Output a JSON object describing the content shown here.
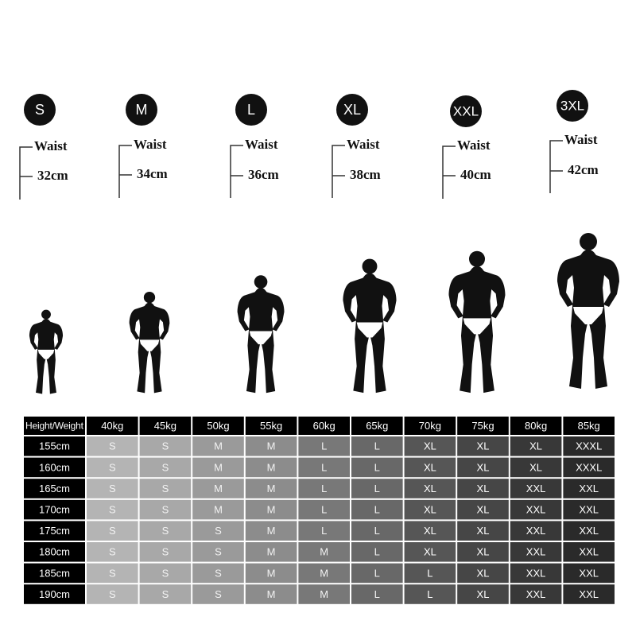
{
  "sizes": [
    {
      "label": "S",
      "measure": "Waist",
      "value": "32cm"
    },
    {
      "label": "M",
      "measure": "Waist",
      "value": "34cm"
    },
    {
      "label": "L",
      "measure": "Waist",
      "value": "36cm"
    },
    {
      "label": "XL",
      "measure": "Waist",
      "value": "38cm"
    },
    {
      "label": "XXL",
      "measure": "Waist",
      "value": "40cm"
    },
    {
      "label": "3XL",
      "measure": "Waist",
      "value": "42cm"
    }
  ],
  "table": {
    "header": [
      "Height/Weight",
      "40kg",
      "45kg",
      "50kg",
      "55kg",
      "60kg",
      "65kg",
      "70kg",
      "75kg",
      "80kg",
      "85kg"
    ],
    "rows": [
      [
        "155cm",
        "S",
        "S",
        "M",
        "M",
        "L",
        "L",
        "XL",
        "XL",
        "XL",
        "XXXL"
      ],
      [
        "160cm",
        "S",
        "S",
        "M",
        "M",
        "L",
        "L",
        "XL",
        "XL",
        "XL",
        "XXXL"
      ],
      [
        "165cm",
        "S",
        "S",
        "M",
        "M",
        "L",
        "L",
        "XL",
        "XL",
        "XXL",
        "XXL"
      ],
      [
        "170cm",
        "S",
        "S",
        "M",
        "M",
        "L",
        "L",
        "XL",
        "XL",
        "XXL",
        "XXL"
      ],
      [
        "175cm",
        "S",
        "S",
        "S",
        "M",
        "L",
        "L",
        "XL",
        "XL",
        "XXL",
        "XXL"
      ],
      [
        "180cm",
        "S",
        "S",
        "S",
        "M",
        "M",
        "L",
        "XL",
        "XL",
        "XXL",
        "XXL"
      ],
      [
        "185cm",
        "S",
        "S",
        "S",
        "M",
        "M",
        "L",
        "L",
        "XL",
        "XXL",
        "XXL"
      ],
      [
        "190cm",
        "S",
        "S",
        "S",
        "M",
        "M",
        "L",
        "L",
        "XL",
        "XXL",
        "XXL"
      ]
    ]
  }
}
